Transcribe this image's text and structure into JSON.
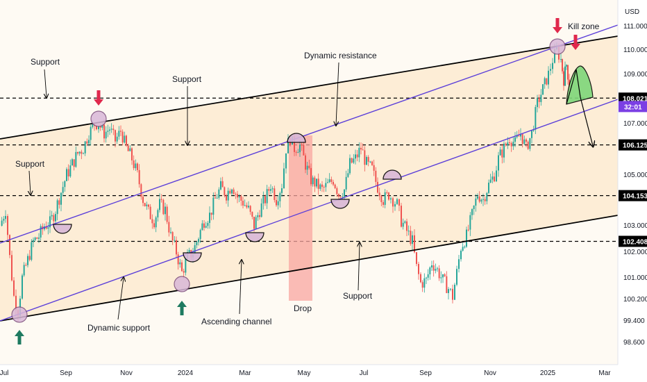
{
  "chart_data": {
    "type": "candlestick",
    "currency": "USD",
    "x_ticks": [
      "Jul",
      "Sep",
      "Nov",
      "2024",
      "Mar",
      "May",
      "Jul",
      "Sep",
      "Nov",
      "2025",
      "Mar"
    ],
    "y_ticks": [
      111.0,
      110.0,
      109.0,
      107.0,
      105.0,
      103.0,
      102.0,
      101.0,
      100.2,
      99.4,
      98.6
    ],
    "ylim": [
      98.1,
      111.6
    ],
    "price_levels": [
      {
        "value": 108.021,
        "label": "108.021",
        "style": "black"
      },
      {
        "value": 106.125,
        "label": "106.125",
        "style": "black"
      },
      {
        "value": 104.153,
        "label": "104.153",
        "style": "black"
      },
      {
        "value": 102.408,
        "label": "102.408",
        "style": "black"
      }
    ],
    "current_price": {
      "value": 107.85,
      "label": "32:01",
      "color": "#7b3fe4"
    },
    "annotations": {
      "support_top_left": "Support",
      "support_upper_mid": "Support",
      "support_left": "Support",
      "dynamic_resistance": "Dynamic resistance",
      "kill_zone": "Kill zone",
      "dynamic_support": "Dynamic support",
      "ascending_channel": "Ascending channel",
      "drop": "Drop",
      "support_bottom": "Support"
    },
    "colors": {
      "channel_fill": "#fde6c4",
      "channel_line": "#000000",
      "trend_line": "#5b3fd9",
      "bull": "#26a69a",
      "bear": "#ef5350",
      "drop_box": "#f8a5a0",
      "arrow_red": "#e0284c",
      "arrow_green": "#1e7a60",
      "kill_zone": "#7ed67a",
      "circle_fill": "#d9b8d8"
    },
    "price_path": [
      [
        0,
        103.0
      ],
      [
        8,
        103.6
      ],
      [
        14,
        101.8
      ],
      [
        20,
        100.3
      ],
      [
        26,
        99.8
      ],
      [
        32,
        101.0
      ],
      [
        40,
        101.7
      ],
      [
        48,
        102.4
      ],
      [
        56,
        102.6
      ],
      [
        64,
        103.0
      ],
      [
        72,
        103.1
      ],
      [
        80,
        103.6
      ],
      [
        88,
        104.3
      ],
      [
        96,
        105.0
      ],
      [
        104,
        105.4
      ],
      [
        112,
        105.8
      ],
      [
        120,
        106.0
      ],
      [
        128,
        106.6
      ],
      [
        136,
        107.0
      ],
      [
        142,
        107.0
      ],
      [
        150,
        106.6
      ],
      [
        158,
        106.8
      ],
      [
        166,
        106.3
      ],
      [
        174,
        106.7
      ],
      [
        182,
        106.0
      ],
      [
        190,
        105.6
      ],
      [
        198,
        105.0
      ],
      [
        206,
        104.0
      ],
      [
        214,
        103.5
      ],
      [
        222,
        103.2
      ],
      [
        230,
        103.8
      ],
      [
        238,
        103.6
      ],
      [
        246,
        102.6
      ],
      [
        254,
        102.0
      ],
      [
        262,
        101.2
      ],
      [
        270,
        101.8
      ],
      [
        278,
        102.0
      ],
      [
        286,
        102.6
      ],
      [
        294,
        103.2
      ],
      [
        302,
        103.4
      ],
      [
        310,
        104.0
      ],
      [
        318,
        104.5
      ],
      [
        326,
        104.2
      ],
      [
        334,
        104.6
      ],
      [
        342,
        104.1
      ],
      [
        350,
        103.9
      ],
      [
        358,
        103.6
      ],
      [
        366,
        103.0
      ],
      [
        374,
        103.6
      ],
      [
        382,
        104.0
      ],
      [
        390,
        104.6
      ],
      [
        398,
        104.0
      ],
      [
        406,
        104.6
      ],
      [
        412,
        106.0
      ],
      [
        418,
        106.4
      ],
      [
        424,
        106.0
      ],
      [
        432,
        106.1
      ],
      [
        440,
        105.4
      ],
      [
        448,
        104.8
      ],
      [
        456,
        104.6
      ],
      [
        464,
        104.4
      ],
      [
        472,
        104.6
      ],
      [
        480,
        104.8
      ],
      [
        488,
        104.2
      ],
      [
        496,
        104.4
      ],
      [
        504,
        105.4
      ],
      [
        512,
        105.6
      ],
      [
        520,
        106.0
      ],
      [
        528,
        105.4
      ],
      [
        536,
        105.2
      ],
      [
        544,
        104.5
      ],
      [
        552,
        104.0
      ],
      [
        560,
        104.2
      ],
      [
        566,
        104.0
      ],
      [
        572,
        103.8
      ],
      [
        578,
        103.2
      ],
      [
        586,
        102.8
      ],
      [
        594,
        102.4
      ],
      [
        600,
        101.4
      ],
      [
        606,
        100.8
      ],
      [
        614,
        100.9
      ],
      [
        622,
        101.6
      ],
      [
        630,
        101.3
      ],
      [
        638,
        100.9
      ],
      [
        646,
        100.6
      ],
      [
        652,
        100.3
      ],
      [
        658,
        101.2
      ],
      [
        664,
        102.2
      ],
      [
        672,
        102.6
      ],
      [
        680,
        103.4
      ],
      [
        688,
        104.2
      ],
      [
        696,
        104.0
      ],
      [
        704,
        104.6
      ],
      [
        712,
        105.0
      ],
      [
        718,
        105.6
      ],
      [
        726,
        106.0
      ],
      [
        734,
        106.4
      ],
      [
        742,
        106.2
      ],
      [
        750,
        106.6
      ],
      [
        758,
        106.0
      ],
      [
        766,
        106.6
      ],
      [
        774,
        107.8
      ],
      [
        782,
        108.4
      ],
      [
        790,
        109.0
      ],
      [
        796,
        109.6
      ],
      [
        802,
        110.0
      ],
      [
        808,
        109.6
      ],
      [
        812,
        108.8
      ],
      [
        816,
        109.4
      ],
      [
        820,
        108.6
      ]
    ],
    "channel": {
      "upper": [
        [
          "Jul-2023",
          107.5
        ],
        [
          "Feb-2025",
          110.6
        ]
      ],
      "lower": [
        [
          "Jul-2023",
          99.5
        ],
        [
          "Mar-2025",
          103.5
        ]
      ]
    }
  }
}
